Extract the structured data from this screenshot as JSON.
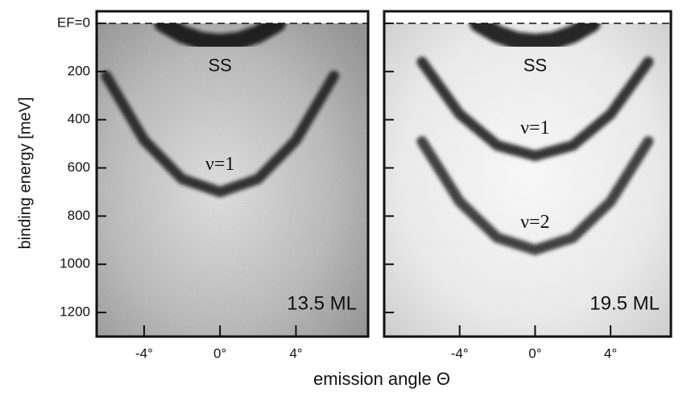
{
  "figure": {
    "ylabel": "binding energy   [meV]",
    "xlabel": "emission angle  Θ"
  },
  "chart_data": [
    {
      "type": "line",
      "label": "13.5 ML",
      "xlim": [
        -6.5,
        7.8
      ],
      "ylim": [
        -50,
        1300
      ],
      "xticks": [
        {
          "value": -4,
          "label": "-4°"
        },
        {
          "value": 0,
          "label": "0°"
        },
        {
          "value": 4,
          "label": "4°"
        }
      ],
      "yticks": [
        {
          "value": 0,
          "label": "EF=0"
        },
        200,
        400,
        600,
        800,
        1000,
        1200
      ],
      "series": [
        {
          "name": "SS",
          "color": "#111111",
          "x": [
            -3,
            -2,
            -1,
            0,
            1,
            2,
            3
          ],
          "values": [
            0,
            45,
            72,
            80,
            72,
            45,
            0
          ]
        },
        {
          "name": "ν=1",
          "color": "#1e1e1e",
          "x": [
            -6,
            -4,
            -2,
            0,
            2,
            4,
            6
          ],
          "values": [
            218,
            485,
            646,
            700,
            646,
            485,
            218
          ]
        }
      ]
    },
    {
      "type": "line",
      "label": "19.5 ML",
      "xlim": [
        -8,
        7.2
      ],
      "ylim": [
        -50,
        1300
      ],
      "xticks": [
        {
          "value": -4,
          "label": "-4°"
        },
        {
          "value": 0,
          "label": "0°"
        },
        {
          "value": 4,
          "label": "4°"
        }
      ],
      "yticks": [
        0,
        200,
        400,
        600,
        800,
        1000,
        1200
      ],
      "series": [
        {
          "name": "SS",
          "color": "#111111",
          "x": [
            -3,
            -2,
            -1,
            0,
            1,
            2,
            3
          ],
          "values": [
            0,
            45,
            72,
            80,
            72,
            45,
            0
          ]
        },
        {
          "name": "ν=1",
          "color": "#1e1e1e",
          "x": [
            -6,
            -4,
            -2,
            0,
            2,
            4,
            6
          ],
          "values": [
            160,
            377,
            507,
            550,
            507,
            377,
            160
          ]
        },
        {
          "name": "ν=2",
          "color": "#2a2a2a",
          "x": [
            -6,
            -4,
            -2,
            0,
            2,
            4,
            6
          ],
          "values": [
            490,
            740,
            890,
            940,
            890,
            740,
            490
          ]
        }
      ]
    }
  ]
}
